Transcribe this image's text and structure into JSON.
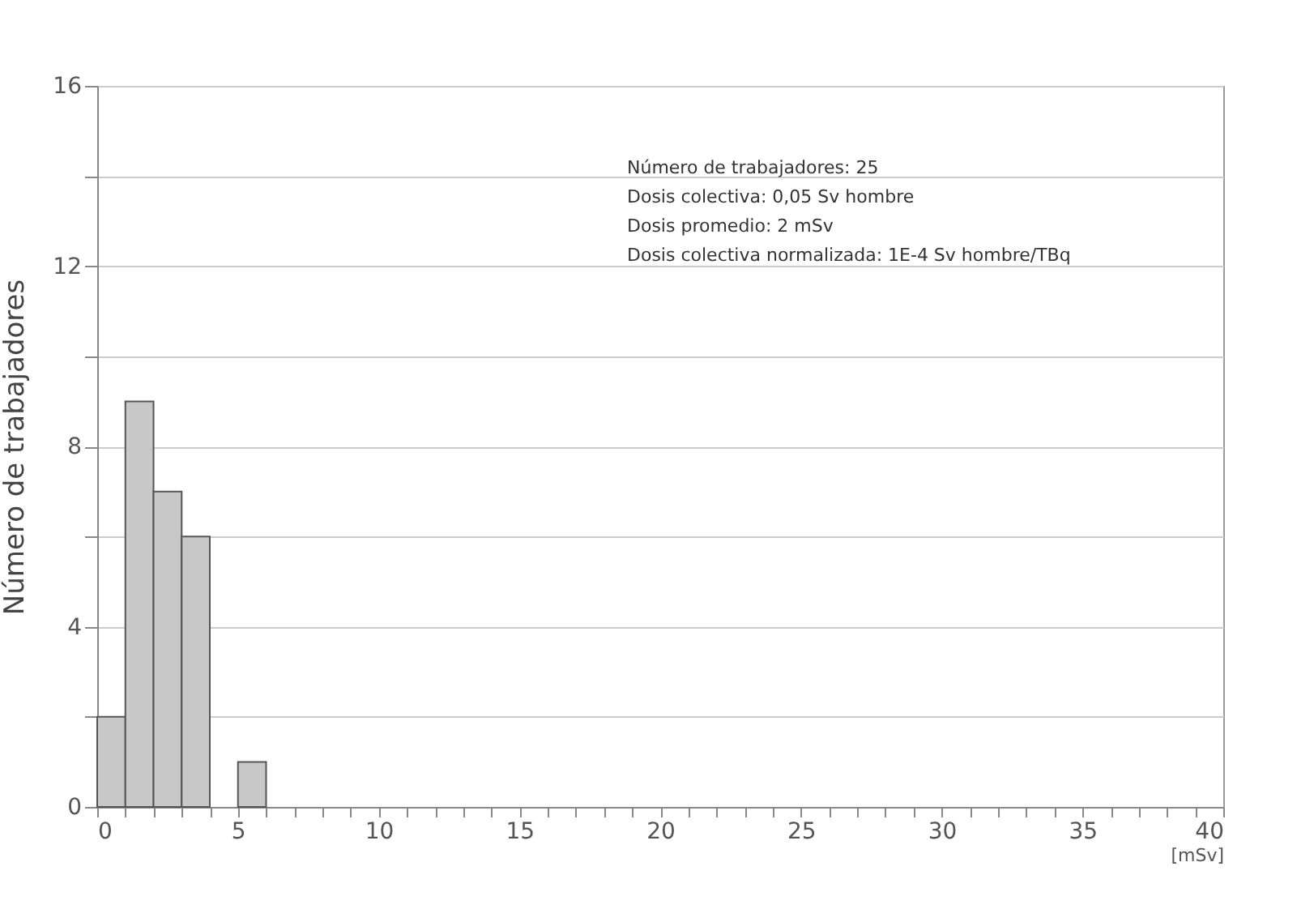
{
  "chart_data": {
    "type": "histogram",
    "bins": [
      0,
      1,
      2,
      3,
      4,
      5,
      6
    ],
    "values": [
      2,
      9,
      7,
      6,
      0,
      1
    ],
    "color": "#c8c8c8",
    "xlabel": "[mSv]",
    "ylabel": "Número de trabajadores",
    "xlim": [
      0,
      40
    ],
    "ylim": [
      0,
      16
    ],
    "xticks": [
      0,
      {
        "value": 1,
        "label": null
      },
      {
        "value": 2,
        "label": null
      },
      {
        "value": 3,
        "label": null
      },
      {
        "value": 4,
        "label": null
      },
      5,
      {
        "value": 6,
        "label": null
      },
      {
        "value": 7,
        "label": null
      },
      {
        "value": 8,
        "label": null
      },
      {
        "value": 9,
        "label": null
      },
      10,
      {
        "value": 11,
        "label": null
      },
      {
        "value": 12,
        "label": null
      },
      {
        "value": 13,
        "label": null
      },
      {
        "value": 14,
        "label": null
      },
      15,
      {
        "value": 16,
        "label": null
      },
      {
        "value": 17,
        "label": null
      },
      {
        "value": 18,
        "label": null
      },
      {
        "value": 19,
        "label": null
      },
      20,
      {
        "value": 21,
        "label": null
      },
      {
        "value": 22,
        "label": null
      },
      {
        "value": 23,
        "label": null
      },
      {
        "value": 24,
        "label": null
      },
      25,
      {
        "value": 26,
        "label": null
      },
      {
        "value": 27,
        "label": null
      },
      {
        "value": 28,
        "label": null
      },
      {
        "value": 29,
        "label": null
      },
      30,
      {
        "value": 31,
        "label": null
      },
      {
        "value": 32,
        "label": null
      },
      {
        "value": 33,
        "label": null
      },
      {
        "value": 34,
        "label": null
      },
      35,
      {
        "value": 36,
        "label": null
      },
      {
        "value": 37,
        "label": null
      },
      {
        "value": 38,
        "label": null
      },
      {
        "value": 39,
        "label": null
      },
      40
    ],
    "yticks": [
      0,
      {
        "value": 2,
        "label": null
      },
      4,
      {
        "value": 6,
        "label": null
      },
      8,
      {
        "value": 10,
        "label": null
      },
      12,
      {
        "value": 14,
        "label": null
      },
      16
    ],
    "grid": "y",
    "annotations": [
      "Número de trabajadores: 25",
      "Dosis colectiva: 0,05 Sv hombre",
      "Dosis promedio: 2 mSv",
      "Dosis colectiva normalizada: 1E-4 Sv hombre/TBq"
    ]
  }
}
